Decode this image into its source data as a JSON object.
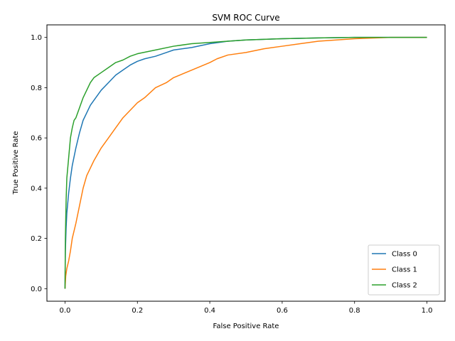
{
  "chart_data": {
    "type": "line",
    "title": "SVM ROC Curve",
    "xlabel": "False Positive Rate",
    "ylabel": "True Positive Rate",
    "xlim": [
      -0.05,
      1.05
    ],
    "ylim": [
      -0.05,
      1.05
    ],
    "x_ticks": [
      "0.0",
      "0.2",
      "0.4",
      "0.6",
      "0.8",
      "1.0"
    ],
    "y_ticks": [
      "0.0",
      "0.2",
      "0.4",
      "0.6",
      "0.8",
      "1.0"
    ],
    "grid": false,
    "legend_position": "lower-right",
    "series": [
      {
        "name": "Class 0",
        "color": "#1f77b4",
        "x": [
          0,
          0.001,
          0.003,
          0.005,
          0.01,
          0.015,
          0.02,
          0.03,
          0.04,
          0.05,
          0.06,
          0.07,
          0.08,
          0.1,
          0.12,
          0.14,
          0.16,
          0.18,
          0.2,
          0.22,
          0.25,
          0.28,
          0.3,
          0.35,
          0.4,
          0.45,
          0.5,
          0.6,
          0.7,
          0.8,
          0.9,
          1.0
        ],
        "y": [
          0,
          0.15,
          0.24,
          0.3,
          0.38,
          0.44,
          0.49,
          0.56,
          0.62,
          0.67,
          0.7,
          0.73,
          0.75,
          0.79,
          0.82,
          0.85,
          0.87,
          0.89,
          0.905,
          0.915,
          0.925,
          0.94,
          0.95,
          0.96,
          0.975,
          0.985,
          0.99,
          0.995,
          0.998,
          1.0,
          1.0,
          1.0
        ]
      },
      {
        "name": "Class 1",
        "color": "#ff7f0e",
        "x": [
          0,
          0.002,
          0.005,
          0.01,
          0.015,
          0.02,
          0.03,
          0.04,
          0.05,
          0.06,
          0.07,
          0.08,
          0.1,
          0.12,
          0.14,
          0.16,
          0.18,
          0.2,
          0.22,
          0.25,
          0.28,
          0.3,
          0.35,
          0.4,
          0.42,
          0.45,
          0.5,
          0.55,
          0.6,
          0.65,
          0.7,
          0.8,
          0.9,
          1.0
        ],
        "y": [
          0,
          0.05,
          0.08,
          0.11,
          0.15,
          0.2,
          0.26,
          0.33,
          0.4,
          0.45,
          0.48,
          0.51,
          0.56,
          0.6,
          0.64,
          0.68,
          0.71,
          0.74,
          0.76,
          0.8,
          0.82,
          0.84,
          0.87,
          0.9,
          0.915,
          0.93,
          0.94,
          0.955,
          0.965,
          0.975,
          0.985,
          0.995,
          1.0,
          1.0
        ]
      },
      {
        "name": "Class 2",
        "color": "#2ca02c",
        "x": [
          0,
          0.001,
          0.003,
          0.005,
          0.01,
          0.015,
          0.02,
          0.025,
          0.03,
          0.04,
          0.05,
          0.06,
          0.07,
          0.08,
          0.1,
          0.12,
          0.14,
          0.16,
          0.18,
          0.2,
          0.25,
          0.3,
          0.35,
          0.4,
          0.5,
          0.6,
          0.7,
          0.8,
          0.9,
          1.0
        ],
        "y": [
          0,
          0.2,
          0.35,
          0.44,
          0.52,
          0.6,
          0.64,
          0.67,
          0.68,
          0.72,
          0.76,
          0.79,
          0.82,
          0.84,
          0.86,
          0.88,
          0.9,
          0.91,
          0.925,
          0.935,
          0.95,
          0.965,
          0.975,
          0.98,
          0.99,
          0.995,
          0.998,
          1.0,
          1.0,
          1.0
        ]
      }
    ]
  }
}
